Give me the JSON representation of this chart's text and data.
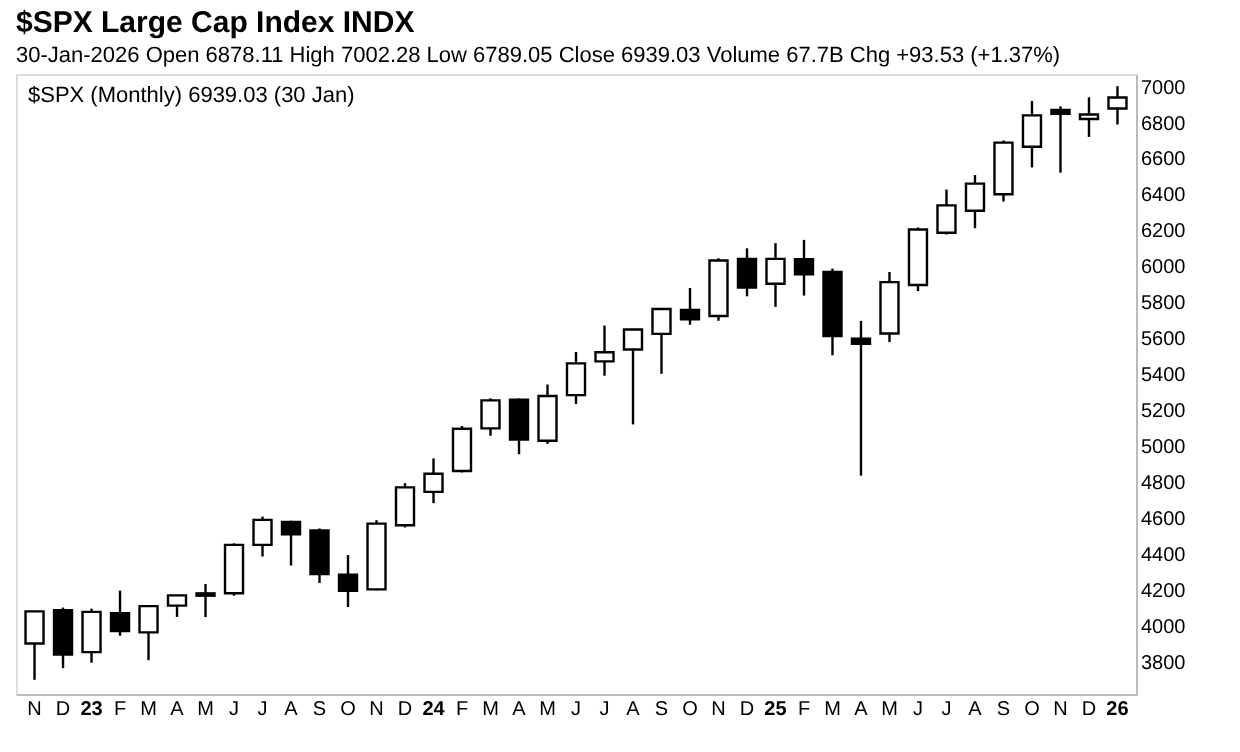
{
  "chart_data": {
    "type": "candlestick",
    "title": "$SPX Large Cap Index INDX",
    "subtitle": "30-Jan-2026  Open 6878.11  High 7002.28  Low 6789.05  Close 6939.03  Volume 67.7B  Chg +93.53 (+1.37%)",
    "annotations": [
      "$SPX (Monthly) 6939.03 (30 Jan)"
    ],
    "categories": [
      "N",
      "D",
      "23",
      "F",
      "M",
      "A",
      "M",
      "J",
      "J",
      "A",
      "S",
      "O",
      "N",
      "D",
      "24",
      "F",
      "M",
      "A",
      "M",
      "J",
      "J",
      "A",
      "S",
      "O",
      "N",
      "D",
      "25",
      "F",
      "M",
      "A",
      "M",
      "J",
      "J",
      "A",
      "S",
      "O",
      "N",
      "D",
      "26"
    ],
    "ohlc": [
      [
        3901,
        4080,
        3699,
        4080
      ],
      [
        4087,
        4101,
        3764,
        3840
      ],
      [
        3853,
        4095,
        3794,
        4077
      ],
      [
        4070,
        4195,
        3944,
        3970
      ],
      [
        3963,
        4111,
        3808,
        4109
      ],
      [
        4112,
        4170,
        4049,
        4169
      ],
      [
        4167,
        4232,
        4048,
        4180
      ],
      [
        4181,
        4458,
        4167,
        4450
      ],
      [
        4450,
        4607,
        4385,
        4589
      ],
      [
        4578,
        4584,
        4335,
        4508
      ],
      [
        4530,
        4541,
        4238,
        4288
      ],
      [
        4284,
        4393,
        4104,
        4194
      ],
      [
        4202,
        4587,
        4197,
        4568
      ],
      [
        4559,
        4793,
        4547,
        4770
      ],
      [
        4745,
        4931,
        4682,
        4846
      ],
      [
        4861,
        5111,
        4853,
        5096
      ],
      [
        5098,
        5265,
        5057,
        5254
      ],
      [
        5257,
        5264,
        4954,
        5036
      ],
      [
        5029,
        5342,
        5012,
        5278
      ],
      [
        5283,
        5523,
        5234,
        5460
      ],
      [
        5471,
        5670,
        5391,
        5522
      ],
      [
        5537,
        5652,
        5120,
        5648
      ],
      [
        5624,
        5767,
        5402,
        5762
      ],
      [
        5757,
        5879,
        5675,
        5705
      ],
      [
        5723,
        6045,
        5697,
        6032
      ],
      [
        6041,
        6100,
        5833,
        5882
      ],
      [
        5903,
        6129,
        5774,
        6041
      ],
      [
        6040,
        6147,
        5837,
        5955
      ],
      [
        5968,
        5987,
        5505,
        5612
      ],
      [
        5597,
        5696,
        4835,
        5569
      ],
      [
        5626,
        5968,
        5578,
        5912
      ],
      [
        5896,
        6216,
        5862,
        6205
      ],
      [
        6187,
        6427,
        6177,
        6339
      ],
      [
        6309,
        6508,
        6212,
        6460
      ],
      [
        6401,
        6700,
        6360,
        6688
      ],
      [
        6665,
        6920,
        6550,
        6840
      ],
      [
        6870,
        6890,
        6521,
        6849
      ],
      [
        6820,
        6940,
        6720,
        6845
      ],
      [
        6878.11,
        7002.28,
        6789.05,
        6939.03
      ]
    ],
    "ylim": [
      3620,
      7070
    ],
    "yticks": [
      3800,
      4000,
      4200,
      4400,
      4600,
      4800,
      5000,
      5200,
      5400,
      5600,
      5800,
      6000,
      6200,
      6400,
      6600,
      6800,
      7000
    ]
  }
}
